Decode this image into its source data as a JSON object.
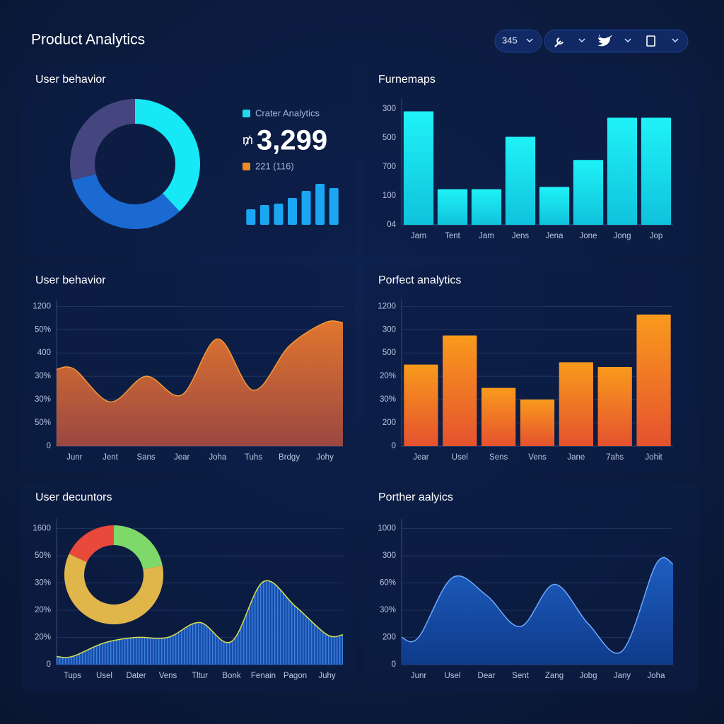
{
  "header": {
    "title": "Product Analytics",
    "badge": "345"
  },
  "chart_data": [
    {
      "type": "pie",
      "title": "User behavior",
      "values": [
        38,
        33,
        29
      ],
      "colors": [
        "#16e8f6",
        "#1a6ad2",
        "#45467f"
      ],
      "legend": [
        {
          "name": "Crater Analytics",
          "color": "#22d8ee"
        },
        {
          "name": "221 (116)",
          "color": "#f08a24"
        }
      ],
      "kpi_prefix": "₥",
      "kpi": "3,299"
    },
    {
      "type": "bar",
      "values": [
        22,
        28,
        30,
        38,
        48,
        58,
        52
      ],
      "ylim": [
        0,
        60
      ],
      "color": "#1aa6f2"
    },
    {
      "type": "bar",
      "title": "Furnemaps",
      "categories": [
        "Jarn",
        "Tent",
        "Jam",
        "Jens",
        "Jena",
        "Jone",
        "Jong",
        "Jop"
      ],
      "values": [
        392,
        123,
        123,
        304,
        131,
        224,
        370,
        370
      ],
      "ylim": [
        0,
        420
      ],
      "yticks": [
        {
          "value": 0,
          "label": "04"
        },
        100,
        {
          "value": 200,
          "label": "700"
        },
        {
          "value": 300,
          "label": "500"
        },
        {
          "value": 400,
          "label": "300"
        }
      ],
      "color": "cyan",
      "grid": false
    },
    {
      "type": "area",
      "title": "User behavior",
      "categories": [
        "Junr",
        "Jent",
        "Sans",
        "Jear",
        "Joha",
        "Tuhs",
        "Brdgy",
        "Johy"
      ],
      "values": [
        3.3,
        1.9,
        3.0,
        2.2,
        4.6,
        2.4,
        4.3,
        5.3
      ],
      "ylim": [
        0,
        6.1
      ],
      "yticks": [
        0,
        {
          "value": 1,
          "label": "50%"
        },
        {
          "value": 2,
          "label": "30%"
        },
        {
          "value": 3,
          "label": "30%"
        },
        {
          "value": 4,
          "label": "400"
        },
        {
          "value": 5,
          "label": "50%"
        },
        {
          "value": 6,
          "label": "1200"
        }
      ],
      "color": "orange",
      "grid": true
    },
    {
      "type": "bar",
      "title": "Porfect analytics",
      "categories": [
        "Jear",
        "Usel",
        "Sens",
        "Vens",
        "Jane",
        "7ahs",
        "Johit"
      ],
      "values": [
        3.5,
        4.75,
        2.5,
        2.0,
        3.6,
        3.4,
        5.65
      ],
      "ylim": [
        0,
        6.1
      ],
      "yticks": [
        0,
        {
          "value": 1,
          "label": "200"
        },
        {
          "value": 2,
          "label": "30%"
        },
        {
          "value": 3,
          "label": "20%"
        },
        {
          "value": 4,
          "label": "500"
        },
        {
          "value": 5,
          "label": "300"
        },
        {
          "value": 6,
          "label": "1200"
        }
      ],
      "color": "orange",
      "grid": true
    },
    {
      "type": "area",
      "title": "User decuntors",
      "categories": [
        "Tups",
        "Usel",
        "Dater",
        "Vens",
        "Tltur",
        "Bonk",
        "Fenain",
        "Pagon",
        "Juhy"
      ],
      "values": [
        0.3,
        0.8,
        1.0,
        1.0,
        1.55,
        0.85,
        3.05,
        2.15,
        1.1
      ],
      "ylim": [
        0,
        5.2
      ],
      "yticks": [
        0,
        {
          "value": 1,
          "label": "20%"
        },
        {
          "value": 2,
          "label": "20%"
        },
        {
          "value": 3,
          "label": "30%"
        },
        {
          "value": 4,
          "label": "50%"
        },
        {
          "value": 5,
          "label": "1600"
        }
      ],
      "color": "stripes",
      "grid": true
    },
    {
      "type": "pie",
      "values": [
        22,
        60,
        18
      ],
      "colors": [
        "#7ed96a",
        "#e0b54a",
        "#e8493a"
      ]
    },
    {
      "type": "area",
      "title": "Porther aalyics",
      "categories": [
        "Junr",
        "Usel",
        "Dear",
        "Sent",
        "Zang",
        "Jobg",
        "Jany",
        "Joha"
      ],
      "values": [
        1.0,
        3.2,
        2.55,
        1.4,
        2.95,
        1.5,
        0.5,
        3.7
      ],
      "ylim": [
        0,
        5.2
      ],
      "yticks": [
        0,
        {
          "value": 1,
          "label": "200"
        },
        {
          "value": 2,
          "label": "30%"
        },
        {
          "value": 3,
          "label": "60%"
        },
        {
          "value": 4,
          "label": "300"
        },
        {
          "value": 5,
          "label": "1000"
        }
      ],
      "color": "blue",
      "grid": true
    }
  ]
}
